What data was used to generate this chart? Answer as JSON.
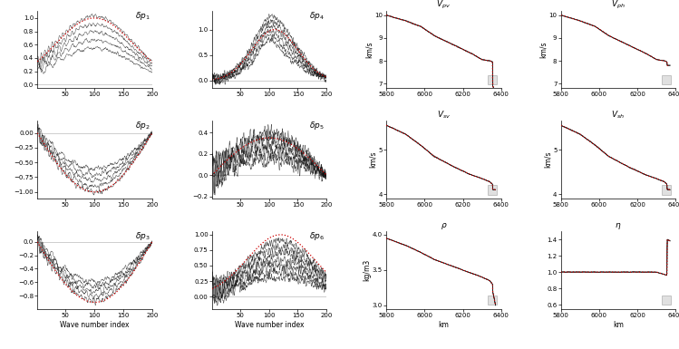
{
  "fig_width": 7.49,
  "fig_height": 3.85,
  "dpi": 100,
  "red_color": "#cc0000",
  "black_color": "#111111",
  "xlabel_spectral": "Wave number index",
  "xlabel_depth": "km",
  "vpv_ylim": [
    6.8,
    10.2
  ],
  "vpv_yticks": [
    7,
    8,
    9,
    10
  ],
  "vph_ylim": [
    6.8,
    10.2
  ],
  "vph_yticks": [
    7,
    8,
    9,
    10
  ],
  "vsv_ylim": [
    3.9,
    5.65
  ],
  "vsv_yticks": [
    4,
    5
  ],
  "vsh_ylim": [
    3.9,
    5.65
  ],
  "vsh_yticks": [
    4,
    5
  ],
  "rho_ylim": [
    2.95,
    4.05
  ],
  "rho_yticks": [
    3.0,
    3.5,
    4.0
  ],
  "eta_ylim": [
    0.55,
    1.5
  ],
  "eta_yticks": [
    0.6,
    0.8,
    1.0,
    1.2,
    1.4
  ]
}
